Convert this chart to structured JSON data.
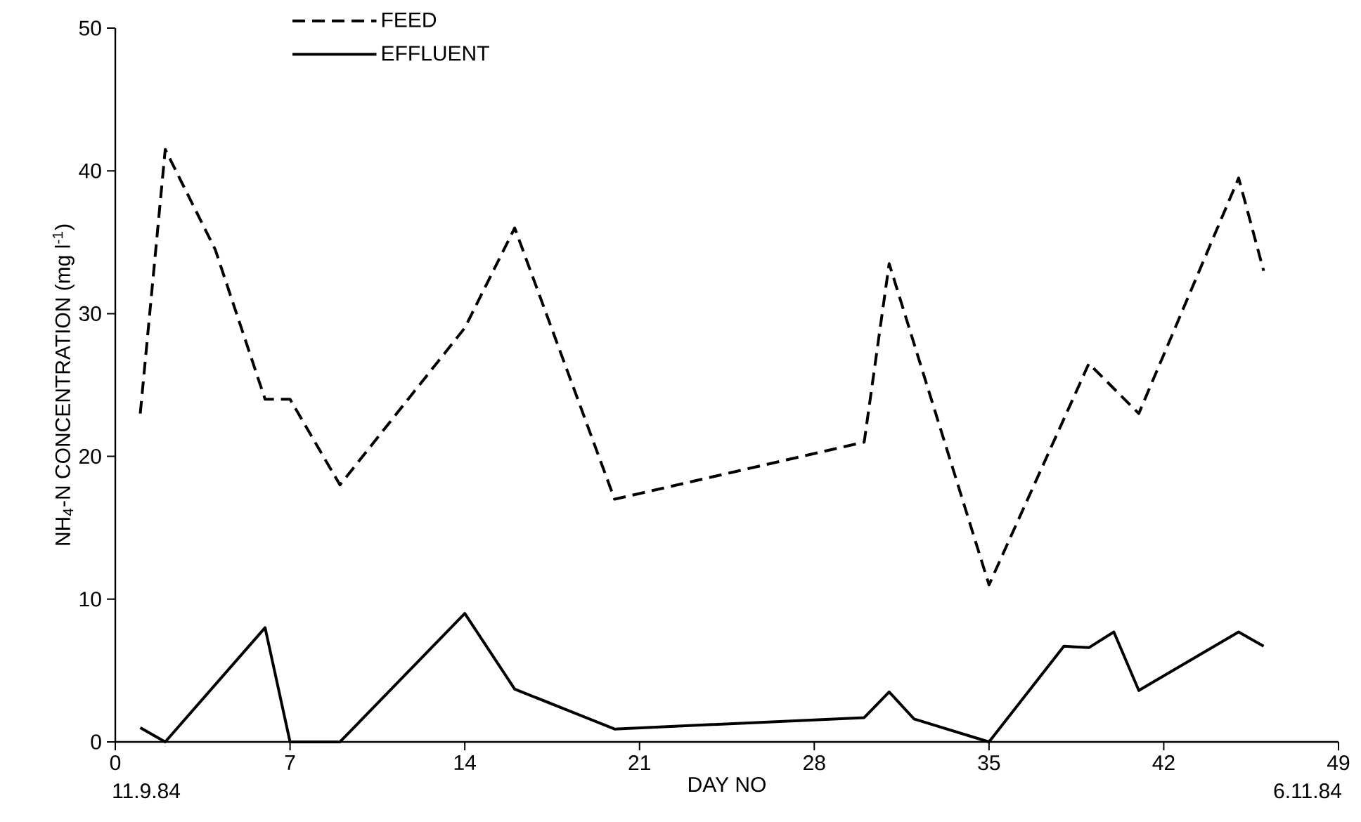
{
  "chart_data": {
    "type": "line",
    "xlabel": "DAY NO",
    "ylabel": "NH$_{4}$-N CONCENTRATION (mg l$^{-1}$)",
    "xlim": [
      0,
      49
    ],
    "xticks": [
      0,
      7,
      14,
      21,
      28,
      35,
      42,
      49
    ],
    "ylim": [
      0,
      50
    ],
    "yticks": [
      0,
      10,
      20,
      30,
      40,
      50
    ],
    "legend": "top left",
    "grid": false,
    "marker": "none",
    "annotations": [
      "11.9.84",
      "6.11.84"
    ],
    "series": [
      {
        "name": "FEED",
        "color": "#000000",
        "line_style": "dashed",
        "x": [
          1,
          2,
          4,
          6,
          7,
          9,
          14,
          16,
          20,
          30,
          31,
          35,
          39,
          41,
          45,
          46
        ],
        "values": [
          23,
          41.5,
          34.5,
          24,
          24,
          18,
          29,
          36,
          17,
          21,
          33.5,
          11,
          26.5,
          23,
          39.5,
          33
        ]
      },
      {
        "name": "EFFLUENT",
        "color": "#000000",
        "line_style": "solid",
        "x": [
          1,
          2,
          6,
          7,
          9,
          14,
          16,
          20,
          30,
          31,
          32,
          35,
          38,
          39,
          40,
          41,
          45,
          46
        ],
        "values": [
          1,
          0,
          8,
          0,
          0,
          9,
          3.7,
          0.9,
          1.7,
          3.5,
          1.6,
          0,
          6.7,
          6.6,
          7.7,
          3.6,
          7.7,
          6.7
        ]
      }
    ]
  }
}
